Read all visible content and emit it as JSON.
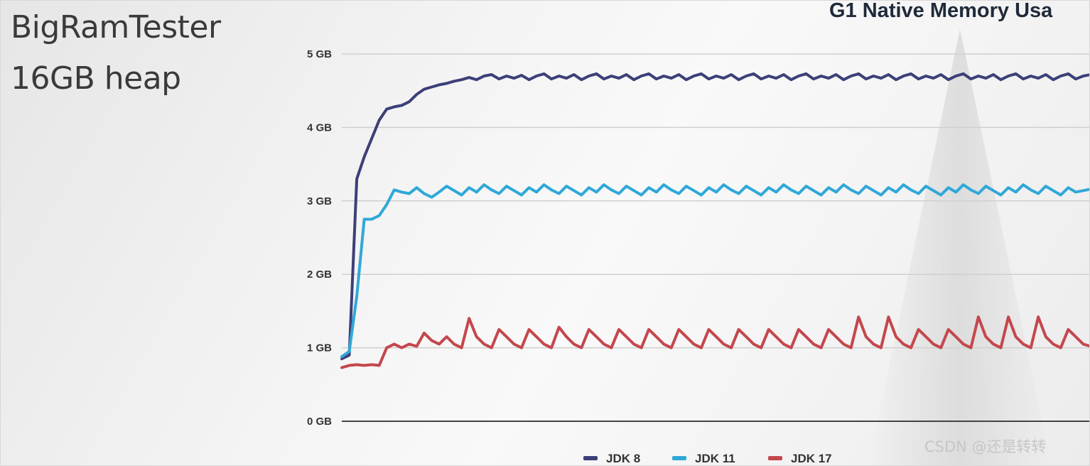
{
  "side_title": {
    "line1": "BigRamTester",
    "line2": "16GB heap"
  },
  "watermark": "CSDN @还是转转",
  "chart_data": {
    "type": "line",
    "title": "G1 Native Memory Usa",
    "xlabel": "",
    "ylabel": "",
    "ylim": [
      0,
      5
    ],
    "yticks": [
      "0 GB",
      "1 GB",
      "2 GB",
      "3 GB",
      "4 GB",
      "5 GB"
    ],
    "grid": true,
    "legend_position": "bottom",
    "colors": {
      "JDK 8": "#3d3f78",
      "JDK 11": "#2fa8d8",
      "JDK 17": "#c4474d"
    },
    "series": [
      {
        "name": "JDK 8",
        "x": [
          0,
          1,
          2,
          3,
          4,
          5,
          6,
          7,
          8,
          9,
          10,
          11,
          12,
          13,
          14,
          15,
          16,
          17,
          18,
          19,
          20,
          21,
          22,
          23,
          24,
          25,
          26,
          27,
          28,
          29,
          30,
          31,
          32,
          33,
          34,
          35,
          36,
          37,
          38,
          39,
          40,
          41,
          42,
          43,
          44,
          45,
          46,
          47,
          48,
          49,
          50,
          51,
          52,
          53,
          54,
          55,
          56,
          57,
          58,
          59,
          60,
          61,
          62,
          63,
          64,
          65,
          66,
          67,
          68,
          69,
          70,
          71,
          72,
          73,
          74,
          75,
          76,
          77,
          78,
          79,
          80,
          81,
          82,
          83,
          84,
          85,
          86,
          87,
          88,
          89,
          90,
          91,
          92,
          93,
          94,
          95,
          96,
          97,
          98,
          99,
          100
        ],
        "values": [
          0.85,
          0.9,
          3.3,
          3.6,
          3.85,
          4.1,
          4.25,
          4.28,
          4.3,
          4.35,
          4.45,
          4.52,
          4.55,
          4.58,
          4.6,
          4.63,
          4.65,
          4.68,
          4.65,
          4.7,
          4.72,
          4.66,
          4.7,
          4.67,
          4.71,
          4.65,
          4.7,
          4.73,
          4.66,
          4.7,
          4.67,
          4.72,
          4.65,
          4.7,
          4.73,
          4.66,
          4.7,
          4.67,
          4.72,
          4.65,
          4.7,
          4.73,
          4.66,
          4.7,
          4.67,
          4.72,
          4.65,
          4.7,
          4.73,
          4.66,
          4.7,
          4.67,
          4.72,
          4.65,
          4.7,
          4.73,
          4.66,
          4.7,
          4.67,
          4.72,
          4.65,
          4.7,
          4.73,
          4.66,
          4.7,
          4.67,
          4.72,
          4.65,
          4.7,
          4.73,
          4.66,
          4.7,
          4.67,
          4.72,
          4.65,
          4.7,
          4.73,
          4.66,
          4.7,
          4.67,
          4.72,
          4.65,
          4.7,
          4.73,
          4.66,
          4.7,
          4.67,
          4.72,
          4.65,
          4.7,
          4.73,
          4.66,
          4.7,
          4.67,
          4.72,
          4.65,
          4.7,
          4.73,
          4.66,
          4.7,
          4.72
        ]
      },
      {
        "name": "JDK 11",
        "x": [
          0,
          1,
          2,
          3,
          4,
          5,
          6,
          7,
          8,
          9,
          10,
          11,
          12,
          13,
          14,
          15,
          16,
          17,
          18,
          19,
          20,
          21,
          22,
          23,
          24,
          25,
          26,
          27,
          28,
          29,
          30,
          31,
          32,
          33,
          34,
          35,
          36,
          37,
          38,
          39,
          40,
          41,
          42,
          43,
          44,
          45,
          46,
          47,
          48,
          49,
          50,
          51,
          52,
          53,
          54,
          55,
          56,
          57,
          58,
          59,
          60,
          61,
          62,
          63,
          64,
          65,
          66,
          67,
          68,
          69,
          70,
          71,
          72,
          73,
          74,
          75,
          76,
          77,
          78,
          79,
          80,
          81,
          82,
          83,
          84,
          85,
          86,
          87,
          88,
          89,
          90,
          91,
          92,
          93,
          94,
          95,
          96,
          97,
          98,
          99,
          100
        ],
        "values": [
          0.88,
          0.95,
          1.7,
          2.75,
          2.75,
          2.8,
          2.95,
          3.15,
          3.12,
          3.1,
          3.18,
          3.1,
          3.05,
          3.12,
          3.2,
          3.14,
          3.08,
          3.18,
          3.12,
          3.22,
          3.15,
          3.1,
          3.2,
          3.14,
          3.08,
          3.18,
          3.12,
          3.22,
          3.15,
          3.1,
          3.2,
          3.14,
          3.08,
          3.18,
          3.12,
          3.22,
          3.15,
          3.1,
          3.2,
          3.14,
          3.08,
          3.18,
          3.12,
          3.22,
          3.15,
          3.1,
          3.2,
          3.14,
          3.08,
          3.18,
          3.12,
          3.22,
          3.15,
          3.1,
          3.2,
          3.14,
          3.08,
          3.18,
          3.12,
          3.22,
          3.15,
          3.1,
          3.2,
          3.14,
          3.08,
          3.18,
          3.12,
          3.22,
          3.15,
          3.1,
          3.2,
          3.14,
          3.08,
          3.18,
          3.12,
          3.22,
          3.15,
          3.1,
          3.2,
          3.14,
          3.08,
          3.18,
          3.12,
          3.22,
          3.15,
          3.1,
          3.2,
          3.14,
          3.08,
          3.18,
          3.12,
          3.22,
          3.15,
          3.1,
          3.2,
          3.14,
          3.08,
          3.18,
          3.12,
          3.14,
          3.16
        ]
      },
      {
        "name": "JDK 17",
        "x": [
          0,
          1,
          2,
          3,
          4,
          5,
          6,
          7,
          8,
          9,
          10,
          11,
          12,
          13,
          14,
          15,
          16,
          17,
          18,
          19,
          20,
          21,
          22,
          23,
          24,
          25,
          26,
          27,
          28,
          29,
          30,
          31,
          32,
          33,
          34,
          35,
          36,
          37,
          38,
          39,
          40,
          41,
          42,
          43,
          44,
          45,
          46,
          47,
          48,
          49,
          50,
          51,
          52,
          53,
          54,
          55,
          56,
          57,
          58,
          59,
          60,
          61,
          62,
          63,
          64,
          65,
          66,
          67,
          68,
          69,
          70,
          71,
          72,
          73,
          74,
          75,
          76,
          77,
          78,
          79,
          80,
          81,
          82,
          83,
          84,
          85,
          86,
          87,
          88,
          89,
          90,
          91,
          92,
          93,
          94,
          95,
          96,
          97,
          98,
          99,
          100
        ],
        "values": [
          0.73,
          0.76,
          0.77,
          0.76,
          0.77,
          0.76,
          1.0,
          1.05,
          1.0,
          1.05,
          1.02,
          1.2,
          1.1,
          1.05,
          1.15,
          1.05,
          1.0,
          1.4,
          1.15,
          1.05,
          1.0,
          1.25,
          1.15,
          1.05,
          1.0,
          1.25,
          1.15,
          1.05,
          1.0,
          1.28,
          1.15,
          1.05,
          1.0,
          1.25,
          1.15,
          1.05,
          1.0,
          1.25,
          1.15,
          1.05,
          1.0,
          1.25,
          1.15,
          1.05,
          1.0,
          1.25,
          1.15,
          1.05,
          1.0,
          1.25,
          1.15,
          1.05,
          1.0,
          1.25,
          1.15,
          1.05,
          1.0,
          1.25,
          1.15,
          1.05,
          1.0,
          1.25,
          1.15,
          1.05,
          1.0,
          1.25,
          1.15,
          1.05,
          1.0,
          1.42,
          1.15,
          1.05,
          1.0,
          1.42,
          1.15,
          1.05,
          1.0,
          1.25,
          1.15,
          1.05,
          1.0,
          1.25,
          1.15,
          1.05,
          1.0,
          1.42,
          1.15,
          1.05,
          1.0,
          1.42,
          1.15,
          1.05,
          1.0,
          1.42,
          1.15,
          1.05,
          1.0,
          1.25,
          1.15,
          1.05,
          1.02
        ]
      }
    ]
  }
}
